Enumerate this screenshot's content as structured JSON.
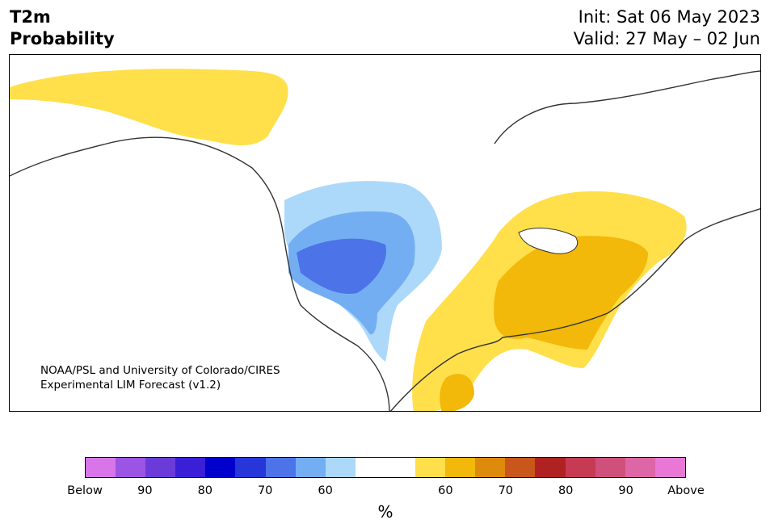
{
  "title": {
    "left_line1": "T2m",
    "left_line2": "Probability",
    "right_line1": "Init: Sat 06 May 2023",
    "right_line2": "Valid: 27 May – 02 Jun"
  },
  "map": {
    "credit_line1": "NOAA/PSL and University of Colorado/CIRES",
    "credit_line2": "Experimental LIM Forecast (v1.2)"
  },
  "colorbar": {
    "unit": "%",
    "ticks": [
      {
        "label": "Below"
      },
      {
        "label": "90"
      },
      {
        "label": "80"
      },
      {
        "label": "70"
      },
      {
        "label": "60"
      },
      {
        "label": "60"
      },
      {
        "label": "70"
      },
      {
        "label": "80"
      },
      {
        "label": "90"
      },
      {
        "label": "Above"
      }
    ],
    "colors": [
      "#d775e9",
      "#9b54e3",
      "#6b3bd9",
      "#3a1fd6",
      "#0000cc",
      "#2636d9",
      "#4d73e8",
      "#74aef2",
      "#acd9f9",
      "#ffffff",
      "#ffffff",
      "#ffdf4a",
      "#f2b80a",
      "#de8a0d",
      "#c9561a",
      "#b02222",
      "#c63a54",
      "#d0507c",
      "#dd66a6",
      "#e877d6"
    ]
  }
}
